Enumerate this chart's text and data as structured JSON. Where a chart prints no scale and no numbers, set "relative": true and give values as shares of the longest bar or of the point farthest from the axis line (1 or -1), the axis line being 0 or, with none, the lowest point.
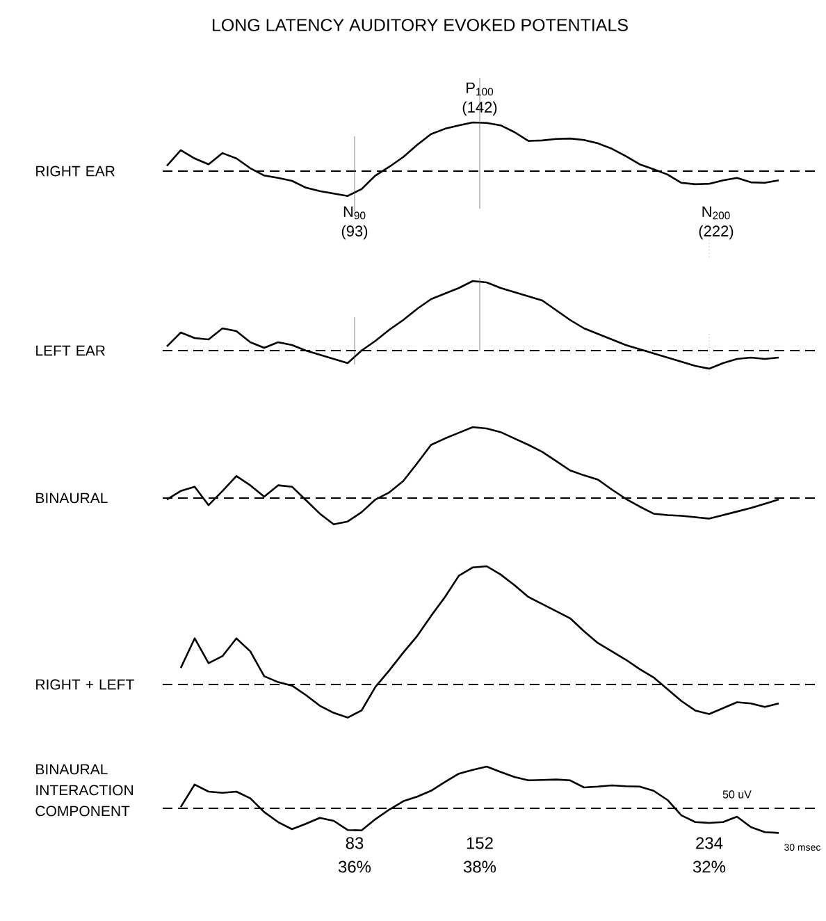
{
  "chart_data": [
    {
      "type": "line",
      "title": "LONG LATENCY AUDITORY EVOKED POTENTIALS",
      "ylabel": "RIGHT EAR",
      "relative": true,
      "color": "#000000",
      "categories": [
        null,
        null,
        null,
        null,
        null,
        null,
        null,
        null,
        null,
        null,
        null,
        null,
        null,
        null,
        null,
        null,
        null,
        null,
        null,
        null,
        null,
        null,
        null,
        null,
        null,
        null,
        null,
        null,
        null,
        null,
        null,
        null,
        null,
        null,
        null,
        null,
        null,
        null,
        null,
        null,
        null,
        null,
        null,
        null,
        null
      ],
      "values": [
        0.11,
        0.43,
        0.26,
        0.14,
        0.37,
        0.26,
        0.06,
        -0.09,
        -0.14,
        -0.2,
        -0.34,
        -0.41,
        -0.46,
        -0.51,
        -0.37,
        -0.09,
        0.09,
        0.29,
        0.54,
        0.76,
        0.87,
        0.94,
        1,
        0.99,
        0.94,
        0.8,
        0.62,
        0.63,
        0.66,
        0.67,
        0.64,
        0.57,
        0.46,
        0.31,
        0.14,
        0.04,
        -0.07,
        -0.24,
        -0.27,
        -0.26,
        -0.19,
        -0.14,
        -0.23,
        -0.24,
        -0.19
      ],
      "ref_lines": [
        {
          "axis": "y",
          "value": 0,
          "line_style": "dashed"
        }
      ],
      "annotations": [
        "P$_{100}$",
        "(142)",
        "N$_{90}$",
        "(93)",
        "N$_{200}$",
        "(222)"
      ]
    },
    {
      "type": "line",
      "ylabel": "LEFT EAR",
      "relative": true,
      "color": "#000000",
      "categories": [
        null,
        null,
        null,
        null,
        null,
        null,
        null,
        null,
        null,
        null,
        null,
        null,
        null,
        null,
        null,
        null,
        null,
        null,
        null,
        null,
        null,
        null,
        null,
        null,
        null,
        null,
        null,
        null,
        null,
        null,
        null,
        null,
        null,
        null,
        null,
        null,
        null,
        null,
        null,
        null,
        null,
        null,
        null,
        null,
        null
      ],
      "values": [
        0.06,
        0.26,
        0.18,
        0.16,
        0.32,
        0.28,
        0.12,
        0.04,
        0.12,
        0.08,
        0,
        -0.06,
        -0.12,
        -0.18,
        0,
        0.14,
        0.3,
        0.44,
        0.6,
        0.74,
        0.82,
        0.9,
        1,
        0.98,
        0.9,
        0.84,
        0.78,
        0.72,
        0.58,
        0.44,
        0.32,
        0.24,
        0.16,
        0.08,
        0.02,
        -0.04,
        -0.1,
        -0.16,
        -0.22,
        -0.26,
        -0.18,
        -0.12,
        -0.1,
        -0.12,
        -0.1
      ],
      "ref_lines": [
        {
          "axis": "y",
          "value": 0,
          "line_style": "dashed"
        }
      ]
    },
    {
      "type": "line",
      "ylabel": "BINAURAL",
      "relative": true,
      "color": "#000000",
      "categories": [
        null,
        null,
        null,
        null,
        null,
        null,
        null,
        null,
        null,
        null,
        null,
        null,
        null,
        null,
        null,
        null,
        null,
        null,
        null,
        null,
        null,
        null,
        null,
        null,
        null,
        null,
        null,
        null,
        null,
        null,
        null,
        null,
        null,
        null,
        null,
        null,
        null,
        null,
        null,
        null,
        null,
        null,
        null,
        null,
        null
      ],
      "values": [
        -0.02,
        0.1,
        0.16,
        -0.1,
        0.1,
        0.31,
        0.18,
        0.02,
        0.18,
        0.16,
        -0.03,
        -0.22,
        -0.37,
        -0.33,
        -0.2,
        -0.02,
        0.08,
        0.24,
        0.49,
        0.75,
        0.84,
        0.92,
        1,
        0.98,
        0.93,
        0.84,
        0.75,
        0.65,
        0.52,
        0.39,
        0.32,
        0.26,
        0.12,
        -0.01,
        -0.12,
        -0.22,
        -0.24,
        -0.25,
        -0.27,
        -0.29,
        -0.24,
        -0.19,
        -0.14,
        -0.08,
        -0.02
      ],
      "ref_lines": [
        {
          "axis": "y",
          "value": 0,
          "line_style": "dashed"
        }
      ]
    },
    {
      "type": "line",
      "ylabel": "RIGHT + LEFT",
      "relative": true,
      "color": "#000000",
      "categories": [
        null,
        null,
        null,
        null,
        null,
        null,
        null,
        null,
        null,
        null,
        null,
        null,
        null,
        null,
        null,
        null,
        null,
        null,
        null,
        null,
        null,
        null,
        null,
        null,
        null,
        null,
        null,
        null,
        null,
        null,
        null,
        null,
        null,
        null,
        null,
        null,
        null,
        null,
        null,
        null,
        null,
        null,
        null,
        null,
        null
      ],
      "values": [
        null,
        0.14,
        0.39,
        0.18,
        0.24,
        0.39,
        0.28,
        0.07,
        0.02,
        -0.01,
        -0.09,
        -0.18,
        -0.24,
        -0.28,
        -0.22,
        -0.02,
        0.12,
        0.27,
        0.41,
        0.58,
        0.74,
        0.92,
        0.99,
        1,
        0.93,
        0.84,
        0.74,
        0.68,
        0.62,
        0.56,
        0.45,
        0.35,
        0.28,
        0.21,
        0.13,
        0.06,
        -0.04,
        -0.14,
        -0.22,
        -0.25,
        -0.2,
        -0.15,
        -0.16,
        -0.19,
        -0.16
      ],
      "ref_lines": [
        {
          "axis": "y",
          "value": 0,
          "line_style": "dashed"
        }
      ]
    },
    {
      "type": "line",
      "ylabel": "BINAURAL INTERACTION COMPONENT",
      "relative": true,
      "color": "#000000",
      "categories": [
        null,
        null,
        null,
        null,
        null,
        null,
        null,
        null,
        null,
        null,
        null,
        null,
        null,
        null,
        null,
        null,
        null,
        null,
        null,
        null,
        null,
        null,
        null,
        null,
        null,
        null,
        null,
        null,
        null,
        null,
        null,
        null,
        null,
        null,
        null,
        null,
        null,
        null,
        null,
        null,
        null,
        null,
        null,
        null,
        null
      ],
      "values": [
        null,
        0.03,
        0.57,
        0.4,
        0.37,
        0.4,
        0.24,
        -0.09,
        -0.33,
        -0.5,
        -0.37,
        -0.23,
        -0.3,
        -0.52,
        -0.53,
        -0.26,
        -0.03,
        0.17,
        0.28,
        0.42,
        0.63,
        0.83,
        0.92,
        1,
        0.87,
        0.75,
        0.67,
        0.68,
        0.69,
        0.67,
        0.5,
        0.52,
        0.55,
        0.53,
        0.52,
        0.42,
        0.2,
        -0.17,
        -0.33,
        -0.35,
        -0.33,
        -0.2,
        -0.45,
        -0.57,
        -0.59
      ],
      "ref_lines": [
        {
          "axis": "y",
          "value": 0,
          "line_style": "dashed"
        }
      ],
      "annotations": [
        "83",
        "36%",
        "152",
        "38%",
        "234",
        "32%",
        "50 uV",
        "30 msec"
      ]
    }
  ]
}
